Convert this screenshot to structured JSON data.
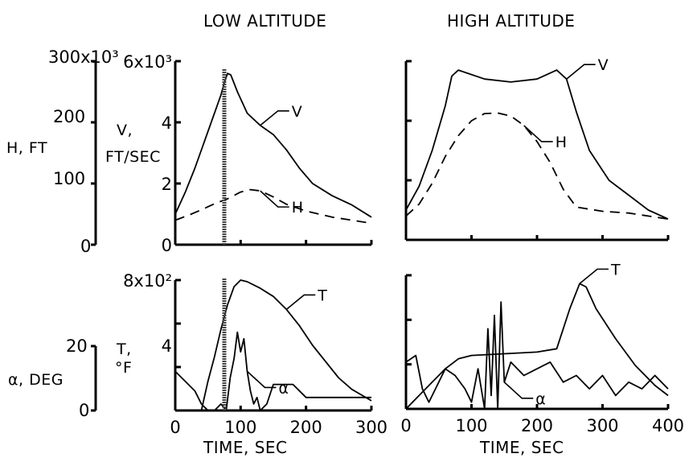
{
  "chart_data": {
    "type": "line",
    "column_titles": [
      "LOW ALTITUDE",
      "HIGH ALTITUDE"
    ],
    "xlabel": "TIME, SEC",
    "left_axes": {
      "upper": {
        "label_line1": "H, FT",
        "ticks": [
          "300x10³",
          "200",
          "100",
          "0"
        ],
        "range": [
          0,
          300000
        ]
      },
      "lower": {
        "label_line1": "α, DEG",
        "ticks": [
          "20",
          "0"
        ],
        "range": [
          0,
          20
        ]
      }
    },
    "panels": [
      {
        "id": "low-velocity",
        "column": "LOW ALTITUDE",
        "ylabel_line1": "V,",
        "ylabel_line2": "FT/SEC",
        "yticks": [
          "6x10³",
          "4",
          "2",
          "0"
        ],
        "ylim": [
          0,
          6000
        ],
        "xlim": [
          0,
          300
        ],
        "series": [
          {
            "name": "V",
            "x": [
              0,
              15,
              30,
              45,
              60,
              70,
              75,
              80,
              85,
              95,
              110,
              130,
              150,
              170,
              190,
              210,
              240,
              270,
              300
            ],
            "y": [
              1000,
              1700,
              2500,
              3400,
              4300,
              4900,
              5300,
              5600,
              5550,
              5000,
              4300,
              3900,
              3600,
              3100,
              2500,
              2000,
              1600,
              1300,
              900
            ]
          },
          {
            "name": "H",
            "axis": "H",
            "x": [
              0,
              20,
              40,
              60,
              80,
              100,
              115,
              130,
              150,
              170,
              200,
              240,
              270,
              300
            ],
            "y": [
              40000,
              48000,
              57000,
              67000,
              75000,
              86000,
              90000,
              88000,
              78000,
              66000,
              55000,
              45000,
              40000,
              35000
            ]
          }
        ],
        "labels": [
          "V",
          "H"
        ]
      },
      {
        "id": "high-velocity",
        "column": "HIGH ALTITUDE",
        "xlim": [
          0,
          400
        ],
        "ylim": [
          0,
          6000
        ],
        "series": [
          {
            "name": "V",
            "x": [
              0,
              20,
              40,
              60,
              70,
              80,
              120,
              160,
              200,
              230,
              245,
              260,
              280,
              310,
              340,
              370,
              400
            ],
            "y": [
              1000,
              1800,
              3000,
              4500,
              5500,
              5700,
              5400,
              5300,
              5400,
              5700,
              5400,
              4300,
              3000,
              2000,
              1500,
              1000,
              700
            ]
          },
          {
            "name": "H",
            "axis": "H",
            "x": [
              0,
              20,
              40,
              60,
              80,
              100,
              120,
              140,
              160,
              180,
              200,
              220,
              240,
              260,
              300,
              340,
              400
            ],
            "y": [
              40000,
              60000,
              95000,
              140000,
              175000,
              200000,
              212000,
              213000,
              208000,
              192000,
              165000,
              130000,
              85000,
              55000,
              48000,
              45000,
              35000
            ]
          }
        ],
        "labels": [
          "V",
          "H"
        ]
      },
      {
        "id": "low-temperature",
        "column": "LOW ALTITUDE",
        "ylabel_line1": "T,",
        "ylabel_line2": "°F",
        "yticks": [
          "8x10²",
          "4"
        ],
        "ylim": [
          0,
          800
        ],
        "xlim": [
          0,
          300
        ],
        "xticks": [
          "0",
          "100",
          "200",
          "300"
        ],
        "series": [
          {
            "name": "T",
            "x": [
              40,
              50,
              60,
              70,
              80,
              90,
              100,
              110,
              130,
              150,
              170,
              190,
              210,
              230,
              250,
              270,
              300
            ],
            "y": [
              0,
              180,
              330,
              500,
              650,
              760,
              800,
              790,
              750,
              700,
              620,
              520,
              400,
              300,
              200,
              130,
              60
            ]
          },
          {
            "name": "α",
            "axis": "α",
            "x": [
              0,
              10,
              20,
              30,
              40,
              50,
              60,
              70,
              78,
              84,
              90,
              95,
              100,
              105,
              110,
              115,
              120,
              125,
              130,
              140,
              150,
              160,
              180,
              200,
              230,
              260,
              300
            ],
            "y": [
              6,
              5,
              4,
              3,
              1,
              0,
              0,
              1,
              0,
              5,
              8,
              12,
              9,
              11,
              6,
              3,
              1,
              2,
              0,
              1,
              4,
              4,
              4,
              2,
              2,
              2,
              2
            ]
          }
        ],
        "labels": [
          "T",
          "α"
        ]
      },
      {
        "id": "high-temperature",
        "column": "HIGH ALTITUDE",
        "xlim": [
          0,
          400
        ],
        "ylim": [
          0,
          800
        ],
        "xticks": [
          "0",
          "100",
          "200",
          "300",
          "400"
        ],
        "series": [
          {
            "name": "T",
            "x": [
              0,
              20,
              40,
              60,
              80,
              100,
              150,
              200,
              230,
              250,
              265,
              275,
              290,
              320,
              350,
              380,
              400
            ],
            "y": [
              0,
              80,
              160,
              240,
              300,
              320,
              330,
              340,
              360,
              600,
              750,
              730,
              600,
              420,
              260,
              140,
              80
            ]
          },
          {
            "name": "α",
            "axis": "α",
            "x": [
              0,
              15,
              25,
              35,
              45,
              60,
              75,
              90,
              100,
              110,
              120,
              125,
              130,
              135,
              140,
              145,
              150,
              160,
              180,
              200,
              220,
              240,
              260,
              280,
              300,
              320,
              340,
              360,
              380,
              400
            ],
            "y": [
              7,
              8,
              3,
              1,
              3,
              6,
              5,
              3,
              1,
              6,
              0,
              12,
              2,
              14,
              0,
              16,
              4,
              7,
              5,
              6,
              7,
              4,
              5,
              3,
              5,
              2,
              4,
              3,
              5,
              3
            ]
          }
        ],
        "labels": [
          "T",
          "α"
        ]
      }
    ]
  }
}
